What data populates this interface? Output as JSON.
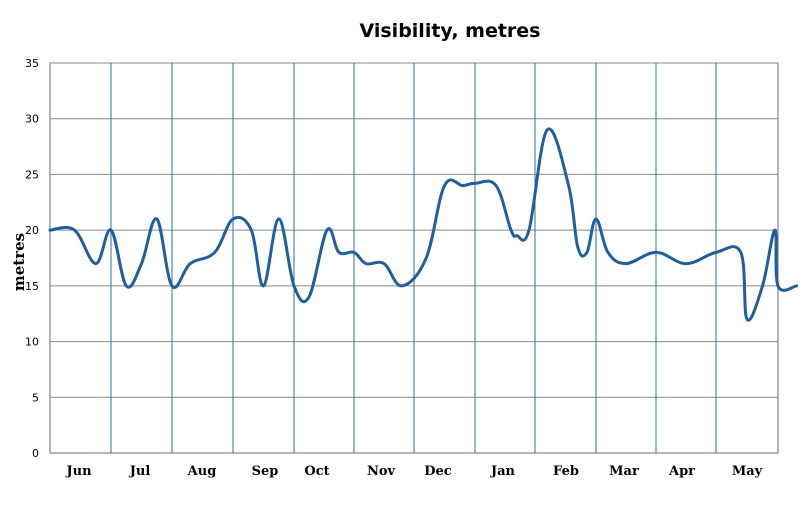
{
  "chart_data": {
    "type": "line",
    "title": "Visibility, metres",
    "xlabel": "",
    "ylabel": "metres",
    "ylim": [
      0,
      35
    ],
    "yticks": [
      0,
      5,
      10,
      15,
      20,
      25,
      30,
      35
    ],
    "grid": true,
    "legend": "none",
    "color": "#1f5f9e",
    "grid_color": "#2c6ea6",
    "categories": [
      "Jun",
      "Jul",
      "Aug",
      "Sep",
      "Oct",
      "Nov",
      "Dec",
      "Jan",
      "Feb",
      "Mar",
      "Apr",
      "May"
    ],
    "series": [
      {
        "x": [
          0,
          0.4,
          0.75,
          1,
          1.25,
          1.5,
          1.75,
          2,
          2.3,
          2.7,
          3,
          3.3,
          3.5,
          3.75,
          4,
          4.25,
          4.55,
          4.75,
          5,
          5.2,
          5.5,
          5.8,
          6.2,
          6.5,
          6.8,
          7,
          7.35,
          7.6,
          7.7,
          7.9,
          8.2,
          8.55,
          8.7,
          8.85,
          9,
          9.2,
          9.5,
          10,
          10.5,
          11,
          11.4,
          11.5,
          11.75,
          11.95,
          12,
          12.3
        ],
        "y": [
          20,
          20,
          17,
          20,
          15,
          17,
          21,
          15,
          17,
          18,
          21,
          20,
          15,
          21,
          15,
          14,
          20,
          18,
          18,
          17,
          17,
          15,
          17.5,
          24,
          24,
          24.2,
          24,
          20,
          19.5,
          20,
          29,
          24,
          18.5,
          18,
          21,
          18,
          17,
          18,
          17,
          18,
          18,
          12,
          15,
          20,
          15,
          15
        ]
      }
    ]
  }
}
